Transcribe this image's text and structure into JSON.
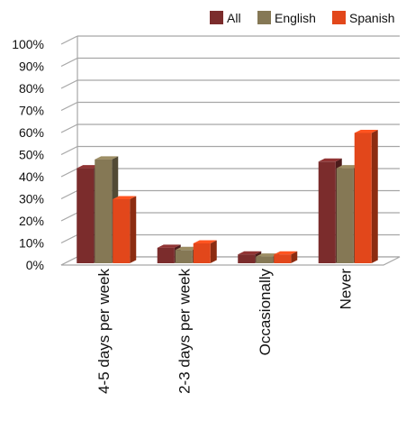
{
  "chart_data": {
    "type": "bar",
    "categories": [
      "4-5 days per week",
      "2-3 days per week",
      "Occasionally",
      "Never"
    ],
    "series": [
      {
        "name": "All",
        "color": "#7b2c2c",
        "values": [
          43,
          7,
          4,
          46
        ]
      },
      {
        "name": "English",
        "color": "#857855",
        "values": [
          47,
          6,
          3,
          43
        ]
      },
      {
        "name": "Spanish",
        "color": "#e2471b",
        "values": [
          29,
          9,
          4,
          59
        ]
      }
    ],
    "y_ticks": [
      "0%",
      "10%",
      "20%",
      "30%",
      "40%",
      "50%",
      "60%",
      "70%",
      "80%",
      "90%",
      "100%"
    ],
    "ylim": [
      0,
      100
    ],
    "grid": true,
    "legend_position": "top-right",
    "style": "3d-clustered-column"
  }
}
